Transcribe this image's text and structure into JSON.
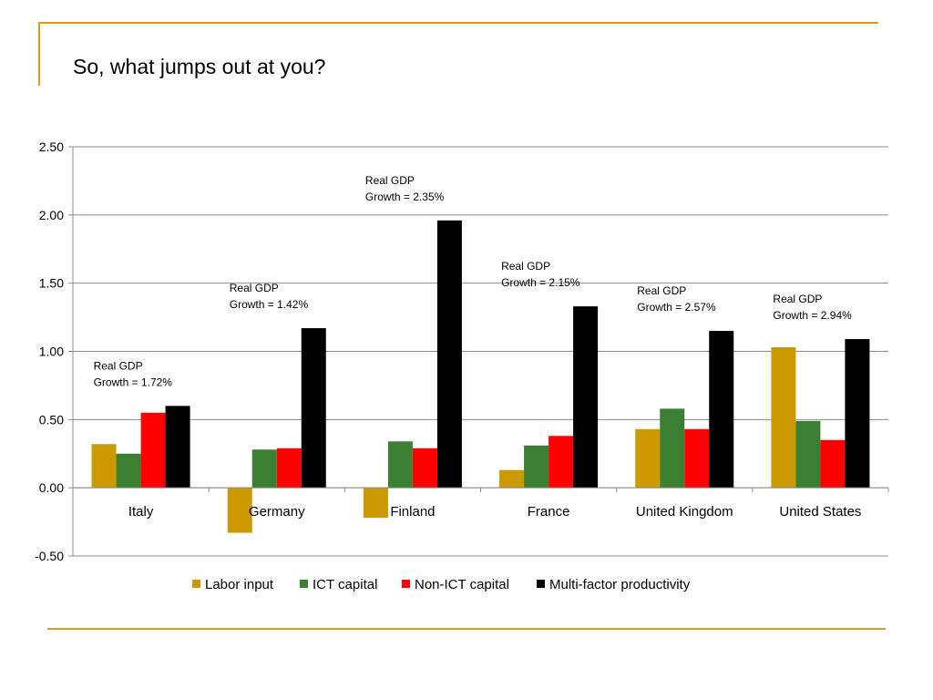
{
  "slide": {
    "title": "So, what jumps out at you?",
    "accent_color": "#D4A017"
  },
  "chart_data": {
    "type": "bar",
    "categories": [
      "Italy",
      "Germany",
      "Finland",
      "France",
      "United Kingdom",
      "United States"
    ],
    "series": [
      {
        "name": "Labor input",
        "color": "#CC9900",
        "values": [
          0.32,
          -0.33,
          -0.22,
          0.13,
          0.43,
          1.03
        ]
      },
      {
        "name": "ICT capital",
        "color": "#3A7F32",
        "values": [
          0.25,
          0.28,
          0.34,
          0.31,
          0.58,
          0.49
        ]
      },
      {
        "name": "Non-ICT capital",
        "color": "#FF0000",
        "values": [
          0.55,
          0.29,
          0.29,
          0.38,
          0.43,
          0.35
        ]
      },
      {
        "name": "Multi-factor productivity",
        "color": "#000000",
        "values": [
          0.6,
          1.17,
          1.96,
          1.33,
          1.15,
          1.09
        ]
      }
    ],
    "ylim": [
      -0.5,
      2.5
    ],
    "yticks": [
      "2.50",
      "2.00",
      "1.50",
      "1.00",
      "0.50",
      "0.00",
      "-0.50"
    ],
    "ytick_values": [
      2.5,
      2.0,
      1.5,
      1.0,
      0.5,
      0.0,
      -0.5
    ],
    "grid": true,
    "legend": "bottom",
    "annotations": [
      {
        "category": "Italy",
        "line1": "Real GDP",
        "line2": "Growth = 1.72%"
      },
      {
        "category": "Germany",
        "line1": "Real GDP",
        "line2": "Growth = 1.42%"
      },
      {
        "category": "Finland",
        "line1": "Real GDP",
        "line2": "Growth = 2.35%"
      },
      {
        "category": "France",
        "line1": "Real GDP",
        "line2": "Growth = 2.15%"
      },
      {
        "category": "United Kingdom",
        "line1": "Real GDP",
        "line2": "Growth = 2.57%"
      },
      {
        "category": "United States",
        "line1": "Real GDP",
        "line2": "Growth = 2.94%"
      }
    ]
  }
}
